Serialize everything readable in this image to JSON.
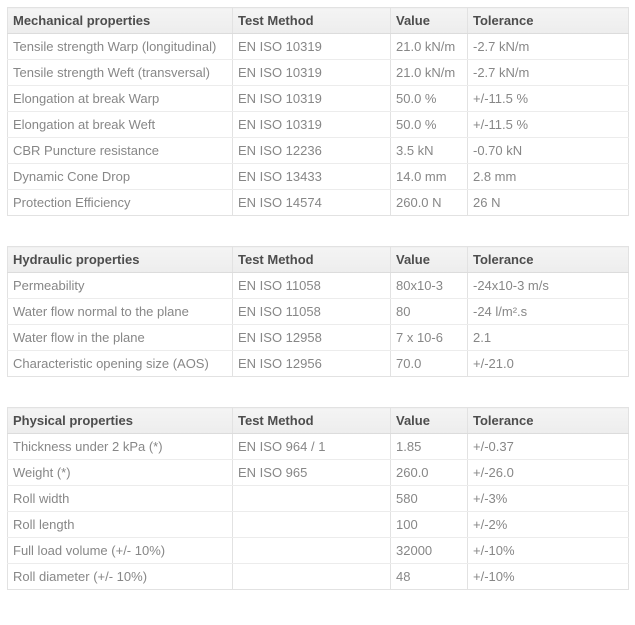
{
  "colors": {
    "header_background": "#f0f0f0",
    "header_text": "#4d4d4d",
    "body_text": "#878787",
    "border": "#e2e2e2",
    "row_background": "#ffffff"
  },
  "tables": [
    {
      "title": "Mechanical properties",
      "headers": [
        "Mechanical properties",
        "Test Method",
        "Value",
        "Tolerance"
      ],
      "rows": [
        [
          "Tensile strength Warp (longitudinal)",
          "EN ISO 10319",
          "21.0 kN/m",
          "-2.7 kN/m"
        ],
        [
          "Tensile strength Weft (transversal)",
          "EN ISO 10319",
          "21.0 kN/m",
          "-2.7 kN/m"
        ],
        [
          "Elongation at break Warp",
          "EN ISO 10319",
          "50.0 %",
          "+/-11.5 %"
        ],
        [
          "Elongation at break Weft",
          "EN ISO 10319",
          "50.0 %",
          "+/-11.5 %"
        ],
        [
          "CBR Puncture resistance",
          "EN ISO 12236",
          "3.5 kN",
          "-0.70 kN"
        ],
        [
          "Dynamic Cone Drop",
          "EN ISO 13433",
          "14.0 mm",
          "2.8 mm"
        ],
        [
          "Protection Efficiency",
          "EN ISO 14574",
          "260.0 N",
          "26 N"
        ]
      ]
    },
    {
      "title": "Hydraulic properties",
      "headers": [
        "Hydraulic properties",
        "Test Method",
        "Value",
        "Tolerance"
      ],
      "rows": [
        [
          "Permeability",
          "EN ISO 11058",
          "80x10-3",
          "-24x10-3 m/s"
        ],
        [
          "Water flow normal to the plane",
          "EN ISO 11058",
          "80",
          "-24 l/m².s"
        ],
        [
          "Water flow in the plane",
          "EN ISO 12958",
          "7 x 10-6",
          "2.1"
        ],
        [
          "Characteristic opening size (AOS)",
          "EN ISO 12956",
          "70.0",
          "+/-21.0"
        ]
      ]
    },
    {
      "title": "Physical properties",
      "headers": [
        "Physical properties",
        "Test Method",
        "Value",
        "Tolerance"
      ],
      "rows": [
        [
          "Thickness under 2 kPa (*)",
          "EN ISO 964 / 1",
          "1.85",
          "+/-0.37"
        ],
        [
          "Weight (*)",
          "EN ISO 965",
          "260.0",
          "+/-26.0"
        ],
        [
          "Roll width",
          "",
          "580",
          "+/-3%"
        ],
        [
          "Roll length",
          "",
          "100",
          "+/-2%"
        ],
        [
          "Full load volume (+/- 10%)",
          "",
          "32000",
          "+/-10%"
        ],
        [
          "Roll diameter (+/- 10%)",
          "",
          "48",
          "+/-10%"
        ]
      ]
    }
  ]
}
